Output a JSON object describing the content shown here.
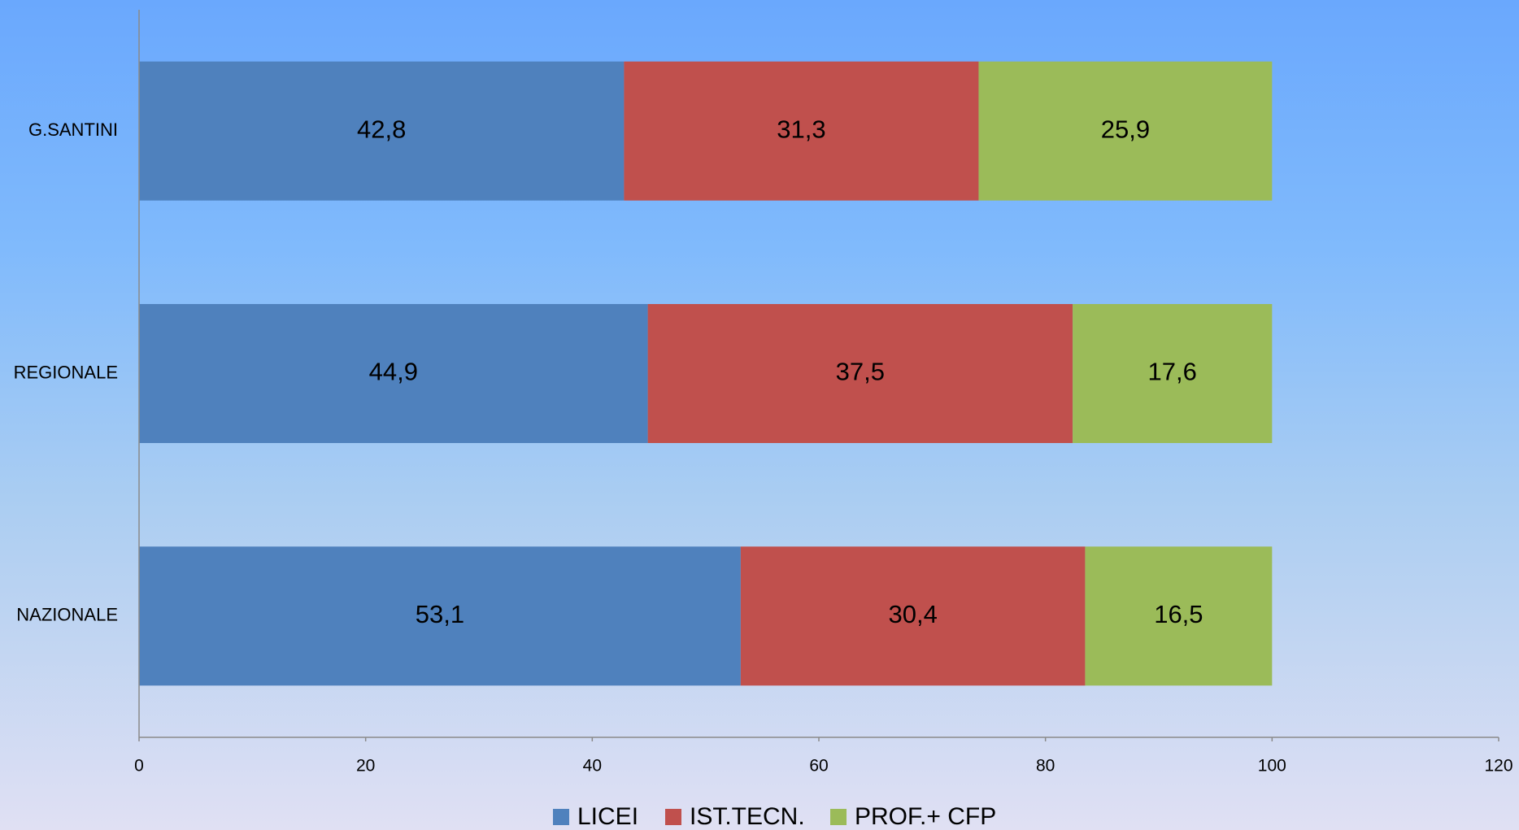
{
  "chart_data": {
    "type": "stacked_barh",
    "categories": [
      "G.SANTINI",
      "REGIONALE",
      "NAZIONALE"
    ],
    "series": [
      {
        "name": "LICEI",
        "color": "#4f81bd",
        "values": [
          42.8,
          44.9,
          53.1
        ],
        "value_labels": [
          "42,8",
          "44,9",
          "53,1"
        ]
      },
      {
        "name": "IST.TECN.",
        "color": "#c0504d",
        "values": [
          31.3,
          37.5,
          30.4
        ],
        "value_labels": [
          "31,3",
          "37,5",
          "30,4"
        ]
      },
      {
        "name": "PROF.+ CFP",
        "color": "#9bbb59",
        "values": [
          25.9,
          17.6,
          16.5
        ],
        "value_labels": [
          "25,9",
          "17,6",
          "16,5"
        ]
      }
    ],
    "xlim": [
      0,
      120
    ],
    "xticks": [
      0,
      20,
      40,
      60,
      80,
      100,
      120
    ],
    "legend": "bottom"
  }
}
